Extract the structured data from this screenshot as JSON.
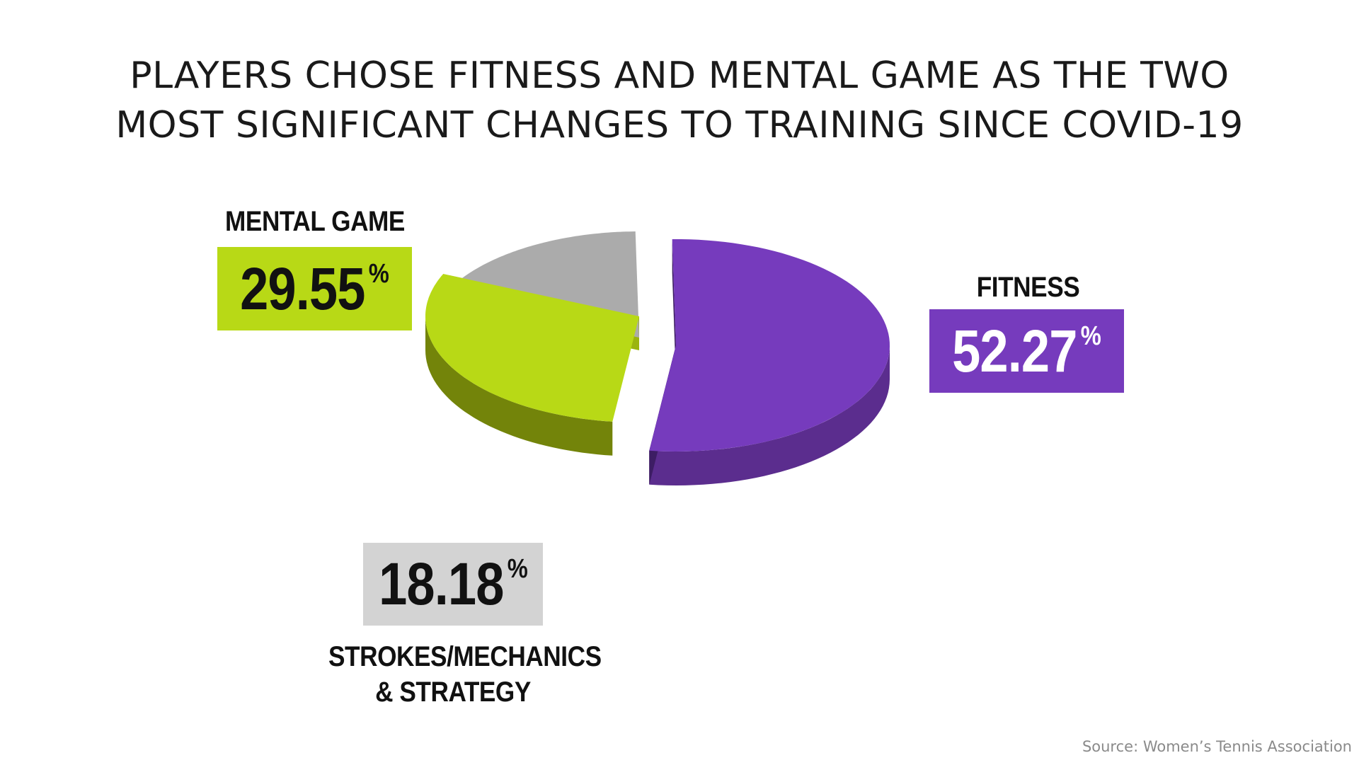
{
  "title_lines": [
    "PLAYERS CHOSE FITNESS AND MENTAL GAME AS THE TWO",
    "MOST SIGNIFICANT CHANGES TO TRAINING SINCE COVID-19"
  ],
  "source": "Source: Women’s Tennis Association",
  "chart_data": {
    "type": "pie",
    "style": "3d exploded pie",
    "title": "PLAYERS CHOSE FITNESS AND MENTAL GAME AS THE TWO MOST SIGNIFICANT CHANGES TO TRAINING SINCE COVID-19",
    "unit": "%",
    "slices": [
      {
        "label": "FITNESS",
        "value_label": "52.27",
        "value": 52.27,
        "color": "#763bbd",
        "side_color": "#5b2d8e",
        "edge_color": "#3d1d64",
        "label_box_color": "#763bbd",
        "label_text_color": "#ffffff"
      },
      {
        "label": "MENTAL GAME",
        "value_label": "29.55",
        "value": 29.55,
        "color": "#b8d916",
        "side_color": "#73840a",
        "edge_color": "#9bb40f",
        "label_box_color": "#b8d916",
        "label_text_color": "#111111"
      },
      {
        "label_lines": [
          "STROKES/MECHANICS",
          "& STRATEGY"
        ],
        "value_label": "18.18",
        "value": 18.18,
        "color": "#ababab",
        "side_color": "#959595",
        "edge_color": "#7a7a7a",
        "label_box_color": "#d3d3d3",
        "label_text_color": "#111111"
      }
    ],
    "percent_symbol": "%"
  }
}
